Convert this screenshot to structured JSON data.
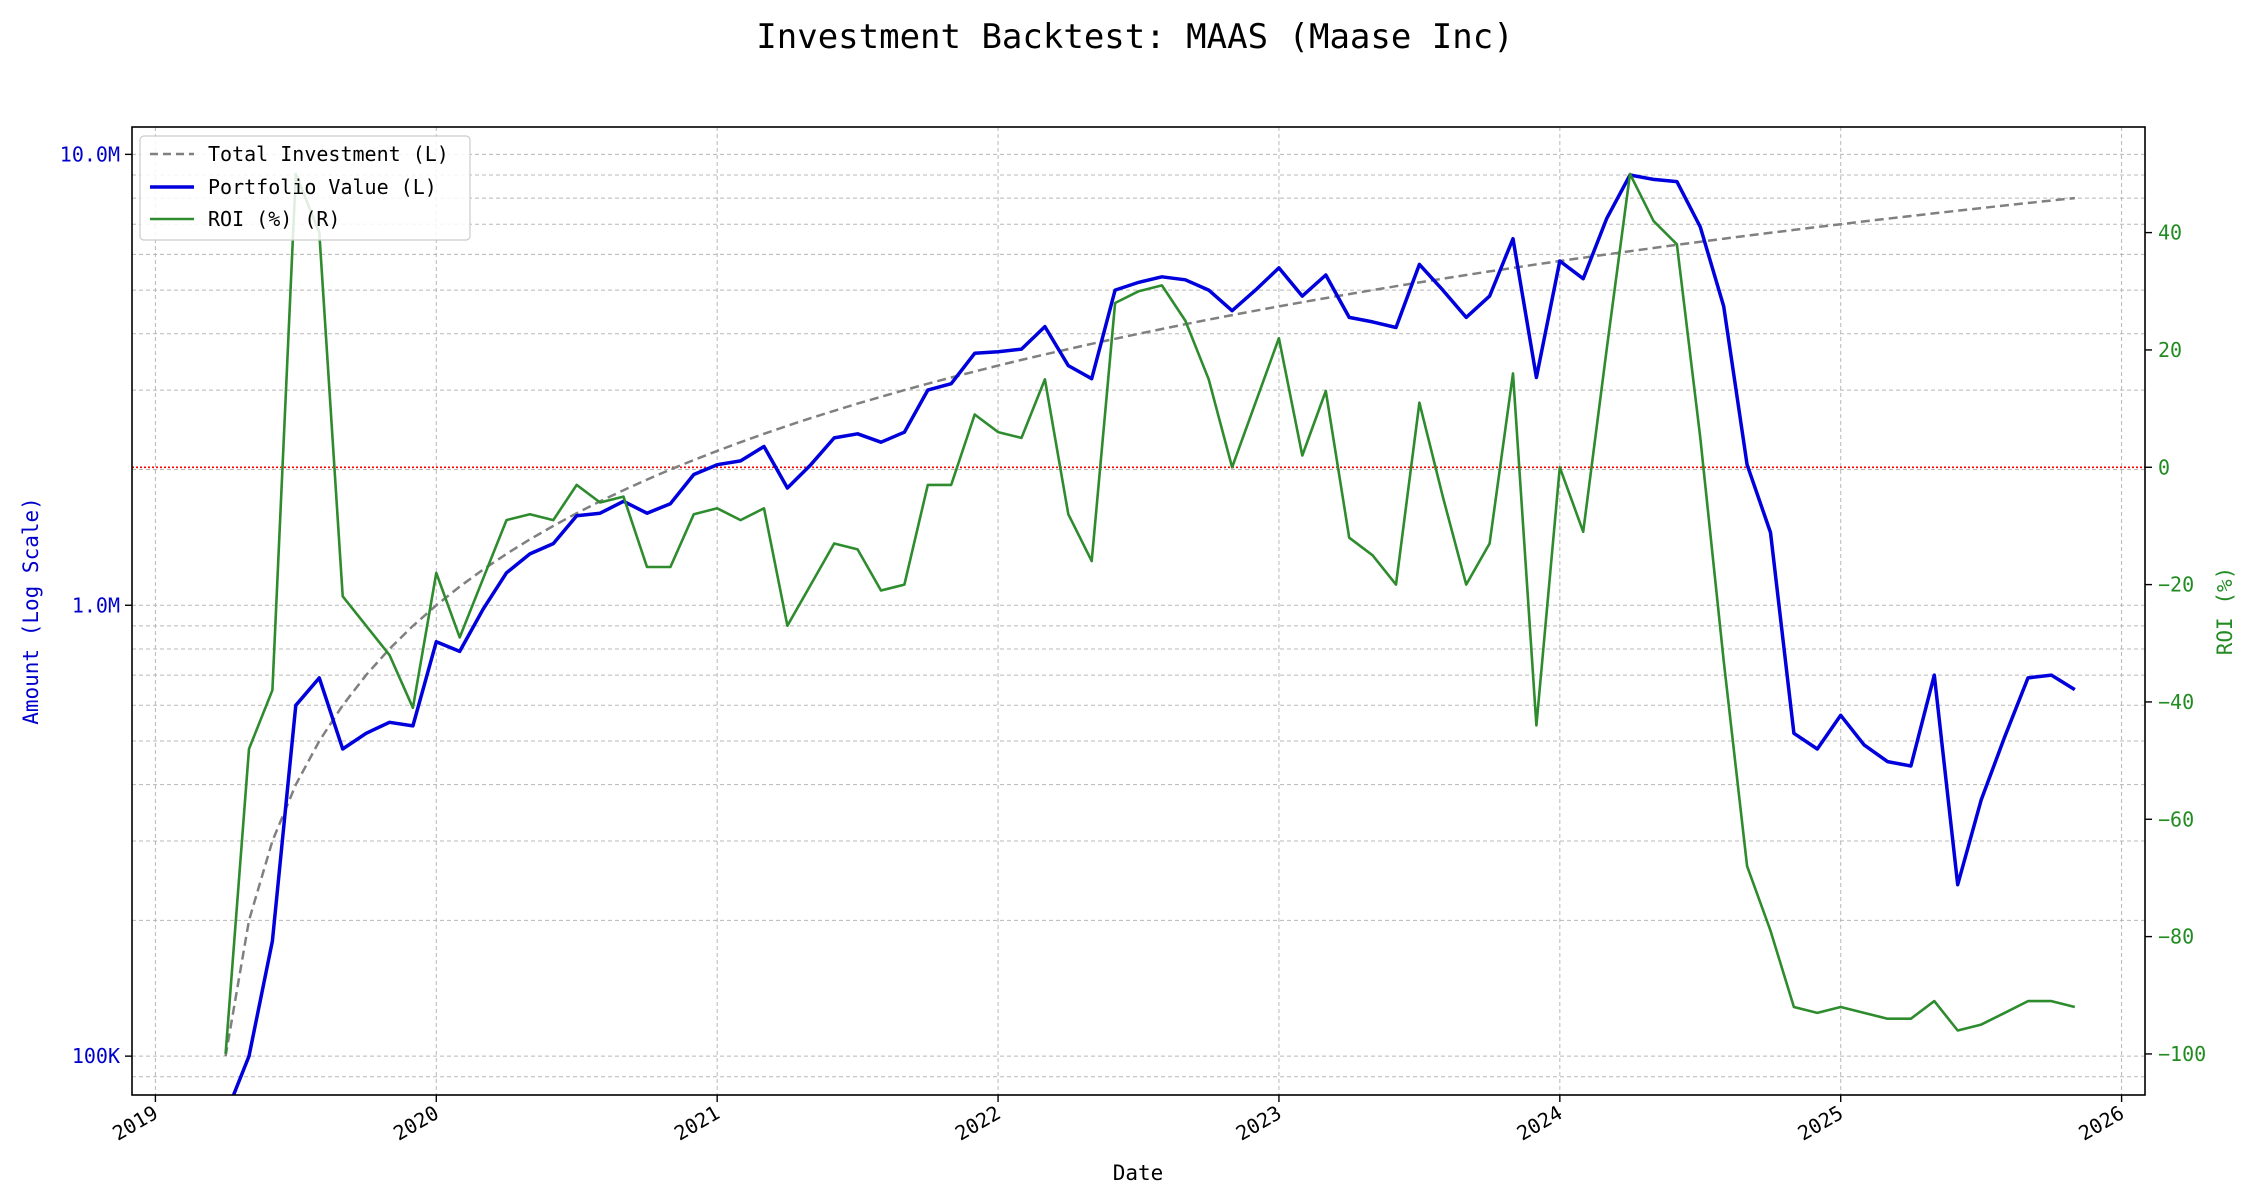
{
  "chart_data": {
    "type": "line",
    "title": "Investment Backtest: MAAS (Maase Inc)",
    "xlabel": "Date",
    "ylabel_left": "Amount (Log Scale)",
    "ylabel_right": "ROI (%)",
    "left_axis_scale": "log",
    "left_ylim": [
      82000,
      11500000
    ],
    "right_ylim": [
      -107,
      58
    ],
    "x_range": [
      "2018-12-01",
      "2026-02-01"
    ],
    "x_ticks": [
      "2019",
      "2020",
      "2021",
      "2022",
      "2023",
      "2024",
      "2025",
      "2026"
    ],
    "left_ticks": [
      {
        "value": 100000,
        "label": "100K"
      },
      {
        "value": 1000000,
        "label": "1.0M"
      },
      {
        "value": 10000000,
        "label": "10.0M"
      }
    ],
    "right_ticks": [
      {
        "value": -100,
        "label": "−100"
      },
      {
        "value": -80,
        "label": "−80"
      },
      {
        "value": -60,
        "label": "−60"
      },
      {
        "value": -40,
        "label": "−40"
      },
      {
        "value": -20,
        "label": "−20"
      },
      {
        "value": 0,
        "label": "0"
      },
      {
        "value": 20,
        "label": "20"
      },
      {
        "value": 40,
        "label": "40"
      }
    ],
    "grid": true,
    "legend_position": "top-left",
    "reference_line": {
      "axis": "right",
      "value": 0,
      "color": "#ff0000",
      "style": "dotted"
    },
    "colors": {
      "total_investment": "#808080",
      "portfolio_value": "#0000dd",
      "roi": "#2e8b2e",
      "left_axis": "#0000cc",
      "right_axis": "#228b22"
    },
    "dates": [
      "2019-04",
      "2019-05",
      "2019-06",
      "2019-07",
      "2019-08",
      "2019-09",
      "2019-10",
      "2019-11",
      "2019-12",
      "2020-01",
      "2020-02",
      "2020-03",
      "2020-04",
      "2020-05",
      "2020-06",
      "2020-07",
      "2020-08",
      "2020-09",
      "2020-10",
      "2020-11",
      "2020-12",
      "2021-01",
      "2021-02",
      "2021-03",
      "2021-04",
      "2021-05",
      "2021-06",
      "2021-07",
      "2021-08",
      "2021-09",
      "2021-10",
      "2021-11",
      "2021-12",
      "2022-01",
      "2022-02",
      "2022-03",
      "2022-04",
      "2022-05",
      "2022-06",
      "2022-07",
      "2022-08",
      "2022-09",
      "2022-10",
      "2022-11",
      "2022-12",
      "2023-01",
      "2023-02",
      "2023-03",
      "2023-04",
      "2023-05",
      "2023-06",
      "2023-07",
      "2023-08",
      "2023-09",
      "2023-10",
      "2023-11",
      "2023-12",
      "2024-01",
      "2024-02",
      "2024-03",
      "2024-04",
      "2024-05",
      "2024-06",
      "2024-07",
      "2024-08",
      "2024-09",
      "2024-10",
      "2024-11",
      "2024-12",
      "2025-01",
      "2025-02",
      "2025-03",
      "2025-04",
      "2025-05",
      "2025-06",
      "2025-07",
      "2025-08",
      "2025-09",
      "2025-10",
      "2025-11"
    ],
    "series": [
      {
        "name": "Total Investment (L)",
        "axis": "left",
        "style": "dashed",
        "values": [
          100000,
          200000,
          300000,
          400000,
          500000,
          600000,
          700000,
          800000,
          900000,
          1000000,
          1100000,
          1200000,
          1300000,
          1400000,
          1500000,
          1600000,
          1700000,
          1800000,
          1900000,
          2000000,
          2100000,
          2200000,
          2300000,
          2400000,
          2500000,
          2600000,
          2700000,
          2800000,
          2900000,
          3000000,
          3100000,
          3200000,
          3300000,
          3400000,
          3500000,
          3600000,
          3700000,
          3800000,
          3900000,
          4000000,
          4100000,
          4200000,
          4300000,
          4400000,
          4500000,
          4600000,
          4700000,
          4800000,
          4900000,
          5000000,
          5100000,
          5200000,
          5300000,
          5400000,
          5500000,
          5600000,
          5700000,
          5800000,
          5900000,
          6000000,
          6100000,
          6200000,
          6300000,
          6400000,
          6500000,
          6600000,
          6700000,
          6800000,
          6900000,
          7000000,
          7100000,
          7200000,
          7300000,
          7400000,
          7500000,
          7600000,
          7700000,
          7800000,
          7900000,
          8000000
        ]
      },
      {
        "name": "Portfolio Value (L)",
        "axis": "left",
        "style": "solid",
        "values": [
          null,
          100000,
          180000,
          600000,
          690000,
          480000,
          520000,
          550000,
          540000,
          830000,
          790000,
          980000,
          1180000,
          1300000,
          1370000,
          1580000,
          1600000,
          1700000,
          1600000,
          1680000,
          1950000,
          2050000,
          2090000,
          2250000,
          1820000,
          2050000,
          2350000,
          2400000,
          2300000,
          2420000,
          3000000,
          3100000,
          3620000,
          3650000,
          3700000,
          4150000,
          3400000,
          3180000,
          5000000,
          5200000,
          5350000,
          5270000,
          5000000,
          4500000,
          5000000,
          5600000,
          4850000,
          5400000,
          4350000,
          4250000,
          4130000,
          5700000,
          5000000,
          4350000,
          4850000,
          6500000,
          3200000,
          5800000,
          5300000,
          7200000,
          9000000,
          8800000,
          8700000,
          6900000,
          4600000,
          2050000,
          1450000,
          520000,
          480000,
          570000,
          490000,
          450000,
          440000,
          700000,
          240000,
          370000,
          510000,
          690000,
          700000,
          650000
        ]
      },
      {
        "name": "ROI (%) (R)",
        "axis": "right",
        "style": "solid",
        "values": [
          -100,
          -48,
          -38,
          50,
          40,
          -22,
          -27,
          -32,
          -41,
          -18,
          -29,
          -19,
          -9,
          -8,
          -9,
          -3,
          -6,
          -5,
          -17,
          -17,
          -8,
          -7,
          -9,
          -7,
          -27,
          -20,
          -13,
          -14,
          -21,
          -20,
          -3,
          -3,
          9,
          6,
          5,
          15,
          -8,
          -16,
          28,
          30,
          31,
          25,
          15,
          0,
          11,
          22,
          2,
          13,
          -12,
          -15,
          -20,
          11,
          -5,
          -20,
          -13,
          16,
          -44,
          0,
          -11,
          20,
          50,
          42,
          38,
          5,
          -33,
          -68,
          -79,
          -92,
          -93,
          -92,
          -93,
          -94,
          -94,
          -91,
          -96,
          -95,
          -93,
          -91,
          -91,
          -92
        ]
      }
    ]
  }
}
